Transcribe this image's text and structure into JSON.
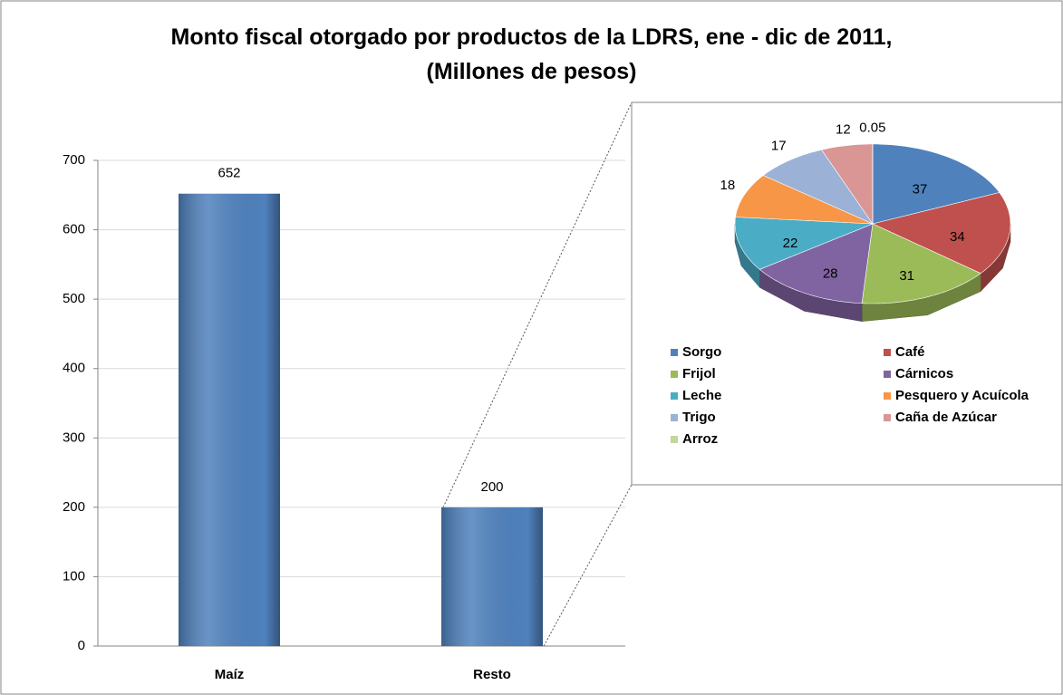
{
  "chart_data": [
    {
      "type": "bar",
      "title": "Monto fiscal otorgado por productos de la LDRS, ene - dic de 2011,\n(Millones de pesos)",
      "categories": [
        "Maíz",
        "Resto"
      ],
      "values": [
        652,
        200
      ],
      "color": "#4f81bd",
      "ylim": [
        0,
        700
      ],
      "yticks": [
        0,
        100,
        200,
        300,
        400,
        500,
        600,
        700
      ],
      "grid": true
    },
    {
      "type": "pie",
      "categories": [
        "Sorgo",
        "Café",
        "Frijol",
        "Cárnicos",
        "Leche",
        "Pesquero y Acuícola",
        "Trigo",
        "Caña de Azúcar",
        "Arroz"
      ],
      "values": [
        37,
        34,
        31,
        28,
        22,
        18,
        17,
        12,
        0.05
      ],
      "colors": [
        "#4f81bd",
        "#c0504d",
        "#9bbb59",
        "#8064a2",
        "#4bacc6",
        "#f79646",
        "#9bb2d6",
        "#d99694",
        "#c3d69b"
      ],
      "legend": "bottom"
    }
  ]
}
